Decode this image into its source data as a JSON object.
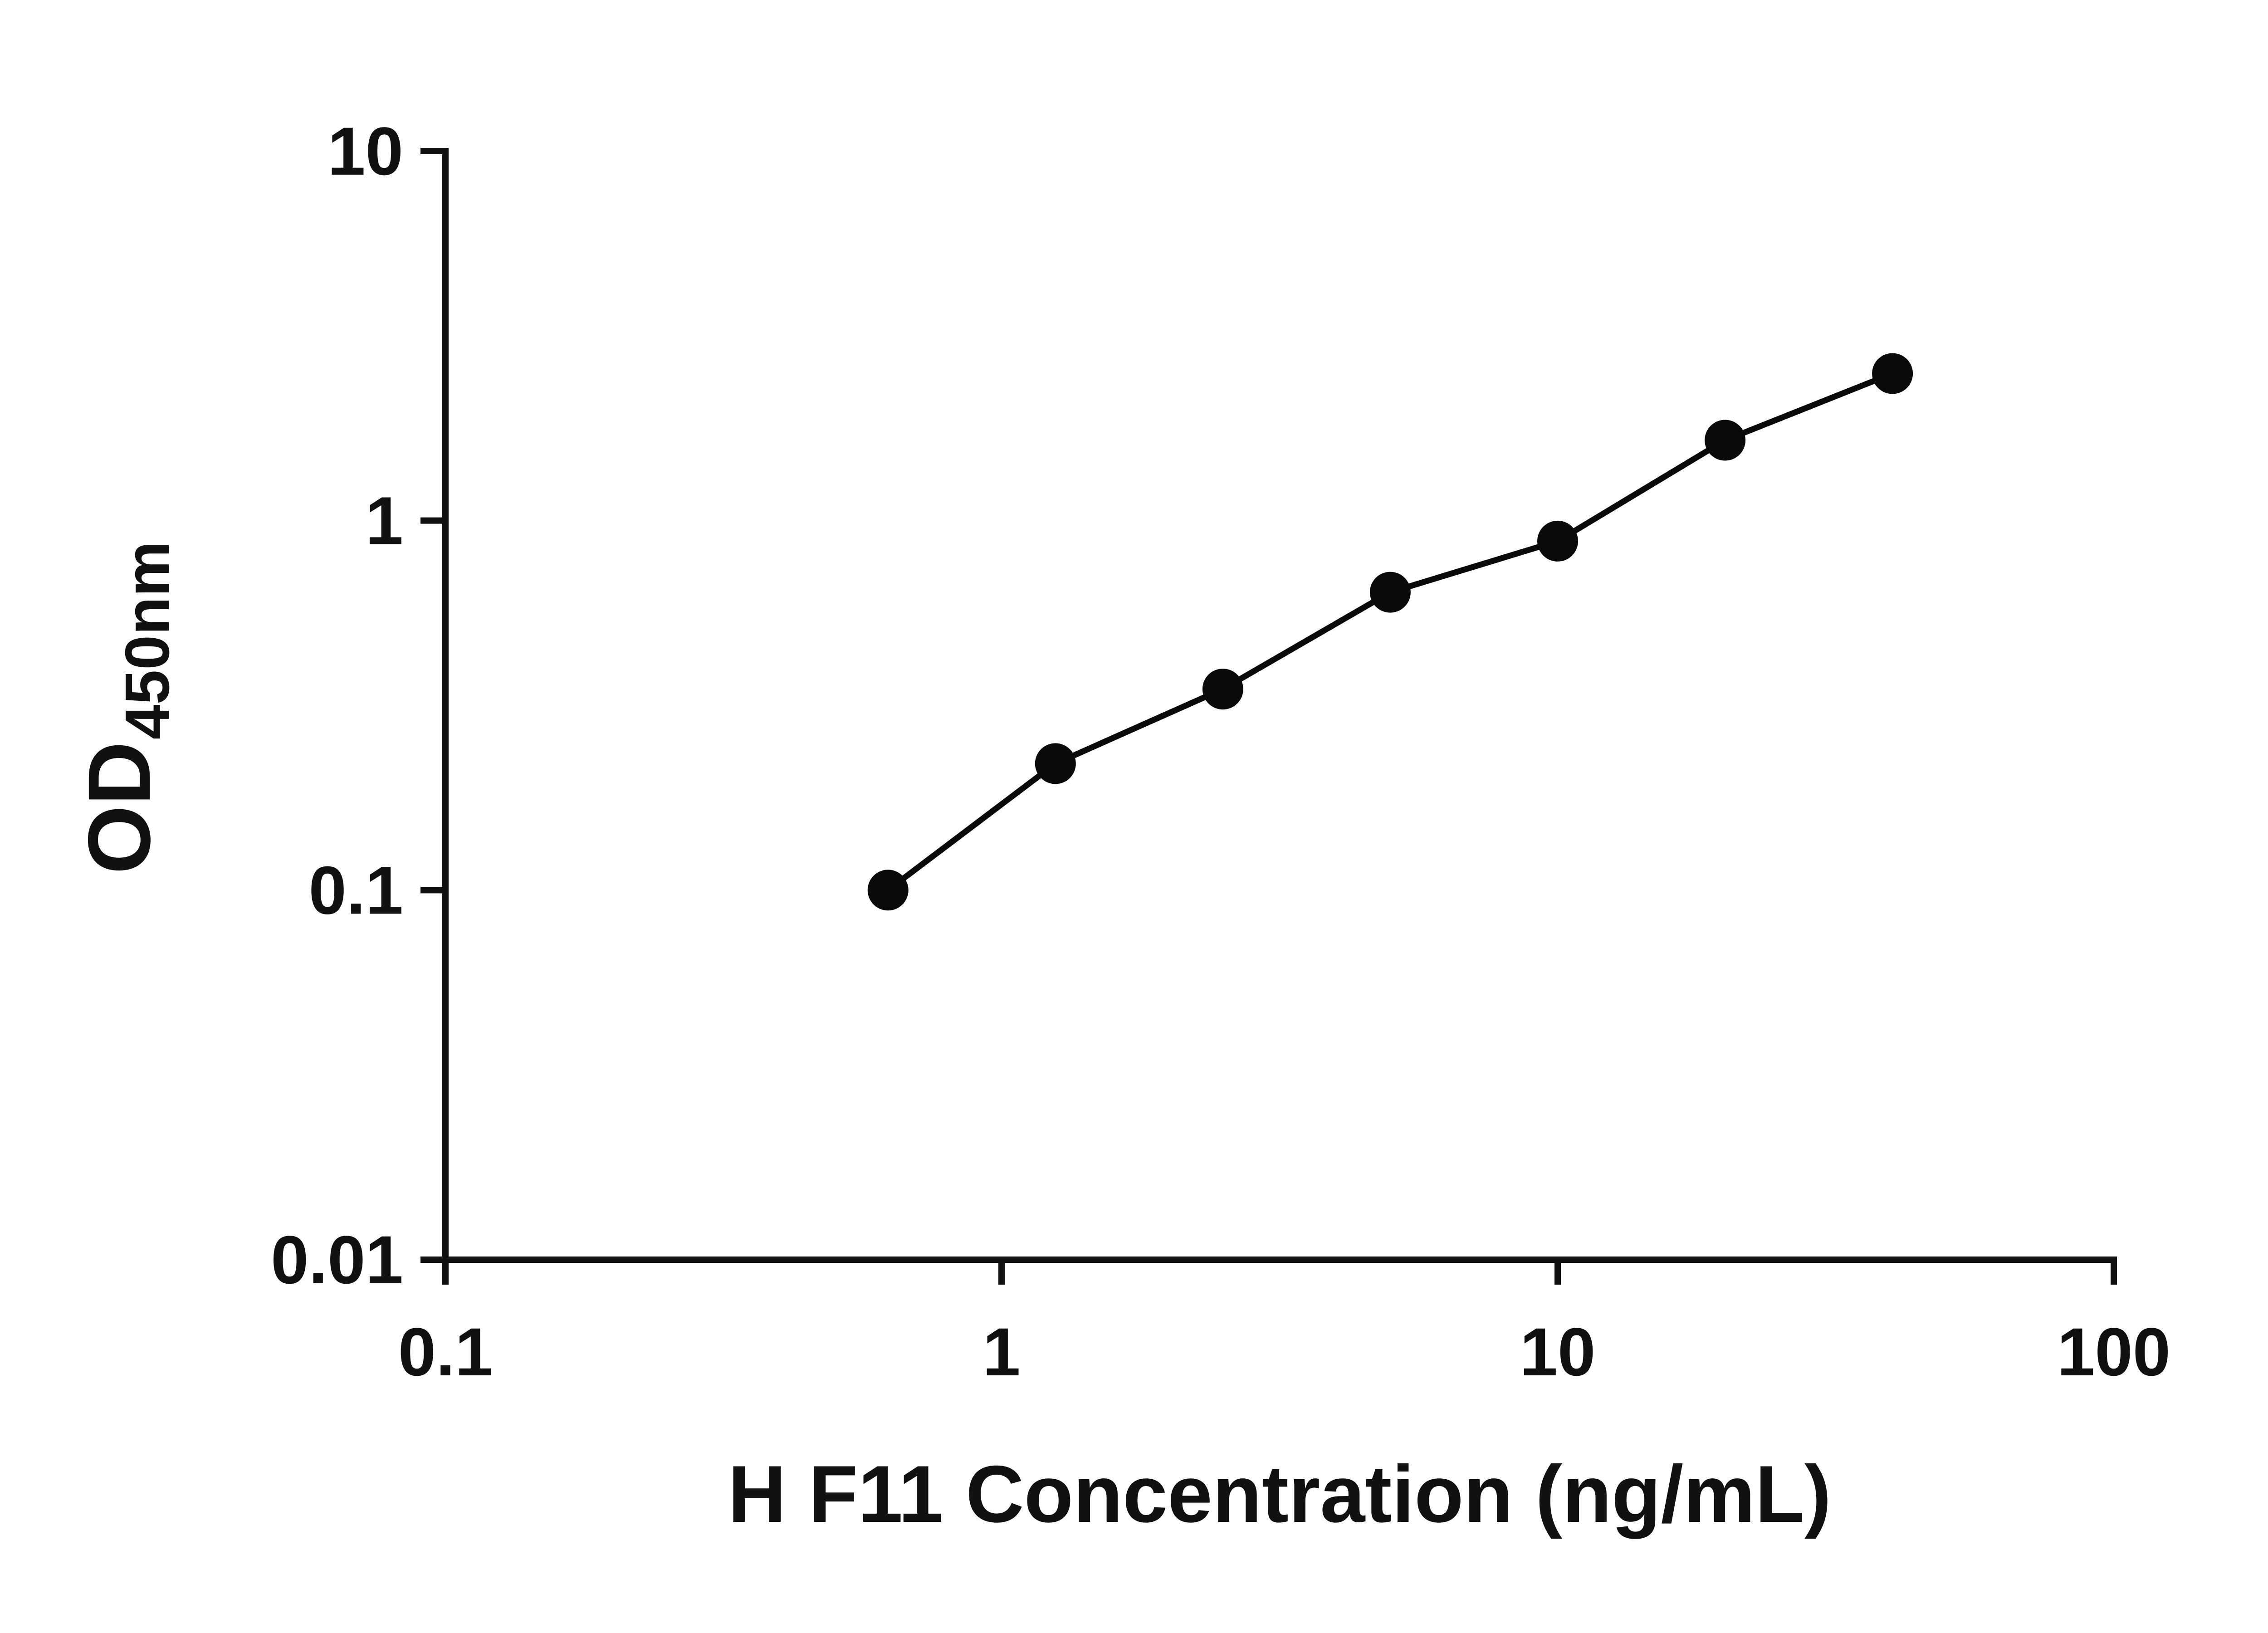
{
  "chart_data": {
    "type": "scatter",
    "title": "",
    "xlabel": "H F11 Concentration (ng/mL)",
    "ylabel": "OD450nm",
    "ylabel_main": "OD",
    "ylabel_sub": "450nm",
    "x_scale": "log",
    "y_scale": "log",
    "xlim": [
      0.1,
      100
    ],
    "ylim": [
      0.01,
      10
    ],
    "x_ticks": [
      0.1,
      1,
      10,
      100
    ],
    "x_tick_labels": [
      "0.1",
      "1",
      "10",
      "100"
    ],
    "y_ticks": [
      0.01,
      0.1,
      1,
      10
    ],
    "y_tick_labels": [
      "0.01",
      "0.1",
      "1",
      "10"
    ],
    "grid": false,
    "legend": "none",
    "colors": {
      "marker": "#0a0a0a",
      "line": "#0a0a0a",
      "axis": "#111111",
      "text": "#111111"
    },
    "series": [
      {
        "marker": "filled-circle",
        "line": "solid",
        "x": [
          0.625,
          1.25,
          2.5,
          5,
          10,
          20,
          40
        ],
        "y": [
          0.1,
          0.22,
          0.35,
          0.64,
          0.88,
          1.65,
          2.5
        ]
      }
    ]
  }
}
